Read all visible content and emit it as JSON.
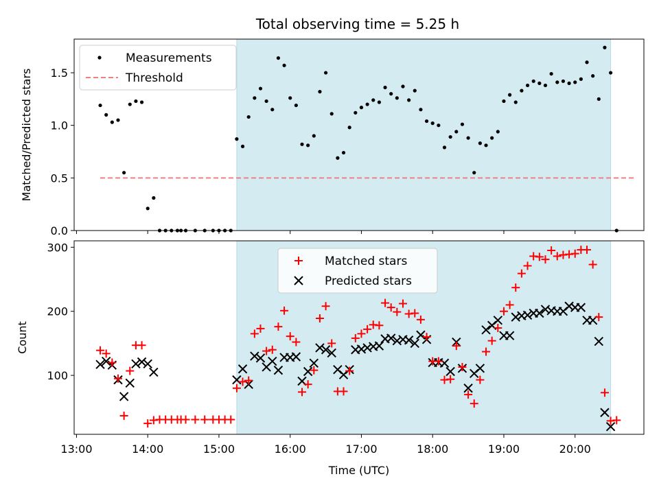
{
  "chart_data": [
    {
      "type": "scatter",
      "title": "Total observing time = 5.25 h",
      "xlabel": "",
      "ylabel": "Matched/Predicted stars",
      "xlim": [
        "12:58",
        "20:58"
      ],
      "ylim": [
        0,
        1.82
      ],
      "y_ticks": [
        0.0,
        0.5,
        1.0,
        1.5
      ],
      "y_tick_labels": [
        "0.0",
        "0.5",
        "1.0",
        "1.5"
      ],
      "shaded_interval": [
        "15:15",
        "20:30"
      ],
      "shade_color": "#d4ebf1",
      "legend_position": "top-left",
      "legend": {
        "measurements": "Measurements",
        "threshold": "Threshold"
      },
      "threshold": {
        "value": 0.5,
        "x_range": [
          "13:20",
          "20:50"
        ],
        "color": "#f08080"
      },
      "series": [
        {
          "name": "Measurements",
          "marker": "dot",
          "color": "#000000",
          "points": [
            [
              "13:20",
              1.19
            ],
            [
              "13:25",
              1.1
            ],
            [
              "13:30",
              1.03
            ],
            [
              "13:35",
              1.05
            ],
            [
              "13:40",
              0.55
            ],
            [
              "13:45",
              1.2
            ],
            [
              "13:50",
              1.23
            ],
            [
              "13:55",
              1.22
            ],
            [
              "14:00",
              0.21
            ],
            [
              "14:05",
              0.31
            ],
            [
              "14:10",
              0
            ],
            [
              "14:15",
              0
            ],
            [
              "14:20",
              0
            ],
            [
              "14:25",
              0
            ],
            [
              "14:28",
              0
            ],
            [
              "14:32",
              0
            ],
            [
              "14:40",
              0
            ],
            [
              "14:48",
              0
            ],
            [
              "14:55",
              0
            ],
            [
              "15:00",
              0
            ],
            [
              "15:05",
              0
            ],
            [
              "15:10",
              0
            ],
            [
              "15:15",
              0.87
            ],
            [
              "15:20",
              0.8
            ],
            [
              "15:25",
              1.08
            ],
            [
              "15:30",
              1.26
            ],
            [
              "15:35",
              1.35
            ],
            [
              "15:40",
              1.23
            ],
            [
              "15:45",
              1.15
            ],
            [
              "15:50",
              1.64
            ],
            [
              "15:55",
              1.57
            ],
            [
              "16:00",
              1.26
            ],
            [
              "16:05",
              1.19
            ],
            [
              "16:10",
              0.82
            ],
            [
              "16:15",
              0.81
            ],
            [
              "16:20",
              0.9
            ],
            [
              "16:25",
              1.32
            ],
            [
              "16:30",
              1.5
            ],
            [
              "16:35",
              1.11
            ],
            [
              "16:40",
              0.69
            ],
            [
              "16:45",
              0.74
            ],
            [
              "16:50",
              0.98
            ],
            [
              "16:55",
              1.12
            ],
            [
              "17:00",
              1.17
            ],
            [
              "17:05",
              1.2
            ],
            [
              "17:10",
              1.24
            ],
            [
              "17:15",
              1.22
            ],
            [
              "17:20",
              1.36
            ],
            [
              "17:25",
              1.3
            ],
            [
              "17:30",
              1.26
            ],
            [
              "17:35",
              1.37
            ],
            [
              "17:40",
              1.24
            ],
            [
              "17:45",
              1.33
            ],
            [
              "17:50",
              1.15
            ],
            [
              "17:55",
              1.04
            ],
            [
              "18:00",
              1.02
            ],
            [
              "18:05",
              1.0
            ],
            [
              "18:10",
              0.79
            ],
            [
              "18:15",
              0.89
            ],
            [
              "18:20",
              0.94
            ],
            [
              "18:25",
              1.01
            ],
            [
              "18:30",
              0.88
            ],
            [
              "18:35",
              0.55
            ],
            [
              "18:40",
              0.83
            ],
            [
              "18:45",
              0.81
            ],
            [
              "18:50",
              0.88
            ],
            [
              "18:55",
              0.94
            ],
            [
              "19:00",
              1.23
            ],
            [
              "19:05",
              1.29
            ],
            [
              "19:10",
              1.22
            ],
            [
              "19:15",
              1.33
            ],
            [
              "19:20",
              1.38
            ],
            [
              "19:25",
              1.42
            ],
            [
              "19:30",
              1.4
            ],
            [
              "19:35",
              1.38
            ],
            [
              "19:40",
              1.49
            ],
            [
              "19:45",
              1.41
            ],
            [
              "19:50",
              1.42
            ],
            [
              "19:55",
              1.4
            ],
            [
              "20:00",
              1.41
            ],
            [
              "20:05",
              1.44
            ],
            [
              "20:10",
              1.6
            ],
            [
              "20:15",
              1.47
            ],
            [
              "20:20",
              1.25
            ],
            [
              "20:25",
              1.74
            ],
            [
              "20:30",
              1.5
            ],
            [
              "20:35",
              0
            ]
          ]
        }
      ]
    },
    {
      "type": "scatter",
      "title": "",
      "xlabel": "Time (UTC)",
      "ylabel": "Count",
      "xlim": [
        "12:58",
        "20:58"
      ],
      "ylim": [
        8,
        310
      ],
      "x_ticks": [
        "13:00",
        "14:00",
        "15:00",
        "16:00",
        "17:00",
        "18:00",
        "19:00",
        "20:00"
      ],
      "y_ticks": [
        100,
        200,
        300
      ],
      "y_tick_labels": [
        "100",
        "200",
        "300"
      ],
      "shaded_interval": [
        "15:15",
        "20:30"
      ],
      "shade_color": "#d4ebf1",
      "legend_position": "top-center",
      "legend": {
        "matched": "Matched stars",
        "predicted": "Predicted stars"
      },
      "series": [
        {
          "name": "Matched stars",
          "marker": "plus",
          "color": "#ff0000",
          "points": [
            [
              "13:20",
              139
            ],
            [
              "13:25",
              134
            ],
            [
              "13:30",
              120
            ],
            [
              "13:35",
              95
            ],
            [
              "13:40",
              37
            ],
            [
              "13:45",
              107
            ],
            [
              "13:50",
              147
            ],
            [
              "13:55",
              147
            ],
            [
              "14:00",
              25
            ],
            [
              "14:05",
              30
            ],
            [
              "14:10",
              31
            ],
            [
              "14:15",
              31
            ],
            [
              "14:20",
              31
            ],
            [
              "14:25",
              31
            ],
            [
              "14:28",
              31
            ],
            [
              "14:32",
              31
            ],
            [
              "14:40",
              31
            ],
            [
              "14:48",
              31
            ],
            [
              "14:55",
              31
            ],
            [
              "15:00",
              31
            ],
            [
              "15:05",
              31
            ],
            [
              "15:10",
              31
            ],
            [
              "15:15",
              80
            ],
            [
              "15:20",
              90
            ],
            [
              "15:25",
              92
            ],
            [
              "15:30",
              165
            ],
            [
              "15:35",
              173
            ],
            [
              "15:40",
              138
            ],
            [
              "15:45",
              140
            ],
            [
              "15:50",
              176
            ],
            [
              "15:55",
              201
            ],
            [
              "16:00",
              161
            ],
            [
              "16:05",
              152
            ],
            [
              "16:10",
              74
            ],
            [
              "16:15",
              86
            ],
            [
              "16:20",
              108
            ],
            [
              "16:25",
              189
            ],
            [
              "16:30",
              208
            ],
            [
              "16:35",
              150
            ],
            [
              "16:40",
              75
            ],
            [
              "16:45",
              75
            ],
            [
              "16:50",
              107
            ],
            [
              "16:55",
              158
            ],
            [
              "17:00",
              165
            ],
            [
              "17:05",
              172
            ],
            [
              "17:10",
              179
            ],
            [
              "17:15",
              178
            ],
            [
              "17:20",
              213
            ],
            [
              "17:25",
              206
            ],
            [
              "17:30",
              199
            ],
            [
              "17:35",
              212
            ],
            [
              "17:40",
              196
            ],
            [
              "17:45",
              197
            ],
            [
              "17:50",
              187
            ],
            [
              "17:55",
              160
            ],
            [
              "18:00",
              122
            ],
            [
              "18:05",
              122
            ],
            [
              "18:10",
              93
            ],
            [
              "18:15",
              94
            ],
            [
              "18:20",
              146
            ],
            [
              "18:25",
              113
            ],
            [
              "18:30",
              70
            ],
            [
              "18:35",
              56
            ],
            [
              "18:40",
              93
            ],
            [
              "18:45",
              137
            ],
            [
              "18:50",
              154
            ],
            [
              "18:55",
              174
            ],
            [
              "19:00",
              200
            ],
            [
              "19:05",
              210
            ],
            [
              "19:10",
              237
            ],
            [
              "19:15",
              259
            ],
            [
              "19:20",
              271
            ],
            [
              "19:25",
              286
            ],
            [
              "19:30",
              285
            ],
            [
              "19:35",
              281
            ],
            [
              "19:40",
              295
            ],
            [
              "19:45",
              286
            ],
            [
              "19:50",
              288
            ],
            [
              "19:55",
              289
            ],
            [
              "20:00",
              290
            ],
            [
              "20:05",
              296
            ],
            [
              "20:10",
              296
            ],
            [
              "20:15",
              273
            ],
            [
              "20:20",
              191
            ],
            [
              "20:25",
              73
            ],
            [
              "20:30",
              29
            ],
            [
              "20:35",
              30
            ]
          ]
        },
        {
          "name": "Predicted stars",
          "marker": "x",
          "color": "#000000",
          "points": [
            [
              "13:20",
              117
            ],
            [
              "13:25",
              122
            ],
            [
              "13:30",
              116
            ],
            [
              "13:35",
              93
            ],
            [
              "13:40",
              67
            ],
            [
              "13:45",
              88
            ],
            [
              "13:50",
              118
            ],
            [
              "13:55",
              121
            ],
            [
              "14:00",
              118
            ],
            [
              "14:05",
              105
            ],
            [
              "15:15",
              93
            ],
            [
              "15:20",
              110
            ],
            [
              "15:25",
              86
            ],
            [
              "15:30",
              130
            ],
            [
              "15:35",
              127
            ],
            [
              "15:40",
              113
            ],
            [
              "15:45",
              122
            ],
            [
              "15:50",
              108
            ],
            [
              "15:55",
              128
            ],
            [
              "16:00",
              128
            ],
            [
              "16:05",
              129
            ],
            [
              "16:10",
              91
            ],
            [
              "16:15",
              106
            ],
            [
              "16:20",
              119
            ],
            [
              "16:25",
              143
            ],
            [
              "16:30",
              140
            ],
            [
              "16:35",
              135
            ],
            [
              "16:40",
              109
            ],
            [
              "16:45",
              101
            ],
            [
              "16:50",
              109
            ],
            [
              "16:55",
              140
            ],
            [
              "17:00",
              141
            ],
            [
              "17:05",
              143
            ],
            [
              "17:10",
              145
            ],
            [
              "17:15",
              146
            ],
            [
              "17:20",
              157
            ],
            [
              "17:25",
              158
            ],
            [
              "17:30",
              154
            ],
            [
              "17:35",
              156
            ],
            [
              "17:40",
              155
            ],
            [
              "17:45",
              150
            ],
            [
              "17:50",
              163
            ],
            [
              "17:55",
              156
            ],
            [
              "18:00",
              120
            ],
            [
              "18:05",
              120
            ],
            [
              "18:10",
              119
            ],
            [
              "18:15",
              106
            ],
            [
              "18:20",
              152
            ],
            [
              "18:25",
              111
            ],
            [
              "18:30",
              80
            ],
            [
              "18:35",
              103
            ],
            [
              "18:40",
              111
            ],
            [
              "18:45",
              171
            ],
            [
              "18:50",
              178
            ],
            [
              "18:55",
              186
            ],
            [
              "19:00",
              162
            ],
            [
              "19:05",
              162
            ],
            [
              "19:10",
              191
            ],
            [
              "19:15",
              193
            ],
            [
              "19:20",
              194
            ],
            [
              "19:25",
              197
            ],
            [
              "19:30",
              197
            ],
            [
              "19:35",
              203
            ],
            [
              "19:40",
              201
            ],
            [
              "19:45",
              200
            ],
            [
              "19:50",
              200
            ],
            [
              "19:55",
              208
            ],
            [
              "20:00",
              206
            ],
            [
              "20:05",
              206
            ],
            [
              "20:10",
              186
            ],
            [
              "20:15",
              186
            ],
            [
              "20:20",
              153
            ],
            [
              "20:25",
              42
            ],
            [
              "20:30",
              20
            ]
          ]
        }
      ]
    }
  ]
}
